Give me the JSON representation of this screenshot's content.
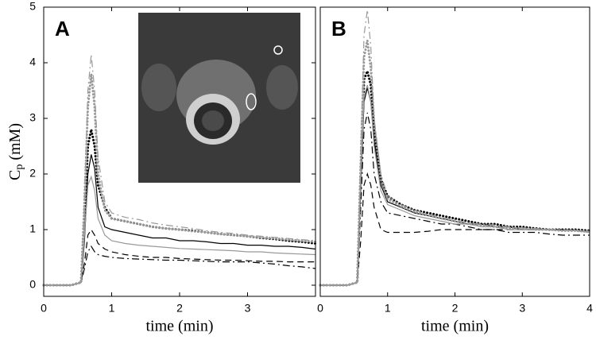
{
  "chart_data": [
    {
      "type": "line",
      "label": "A",
      "xlabel": "time (min)",
      "ylabel": "C",
      "ylabel_sub": "p",
      "ylabel_unit": "(mM)",
      "xlim": [
        0,
        4
      ],
      "xticks": [
        0,
        1,
        2,
        3
      ],
      "ylim": [
        -0.2,
        5
      ],
      "yticks": [
        0,
        1,
        2,
        3,
        4,
        5
      ],
      "x": [
        0,
        0.2,
        0.4,
        0.55,
        0.6,
        0.65,
        0.7,
        0.75,
        0.8,
        0.9,
        1.0,
        1.2,
        1.4,
        1.6,
        1.8,
        2.0,
        2.2,
        2.4,
        2.6,
        2.8,
        3.0,
        3.2,
        3.4,
        3.6,
        3.8,
        4.0
      ],
      "series": [
        {
          "color": "#000000",
          "style": "solid",
          "values": [
            0,
            0,
            0,
            0.05,
            0.8,
            2.0,
            2.35,
            2.1,
            1.4,
            1.05,
            1.0,
            0.95,
            0.9,
            0.85,
            0.85,
            0.8,
            0.8,
            0.78,
            0.75,
            0.75,
            0.72,
            0.72,
            0.7,
            0.7,
            0.68,
            0.65
          ]
        },
        {
          "color": "#000000",
          "style": "dashed",
          "values": [
            0,
            0,
            0,
            0.05,
            0.4,
            0.9,
            1.0,
            0.9,
            0.75,
            0.65,
            0.6,
            0.55,
            0.52,
            0.5,
            0.5,
            0.48,
            0.47,
            0.46,
            0.45,
            0.45,
            0.44,
            0.43,
            0.43,
            0.42,
            0.42,
            0.42
          ]
        },
        {
          "color": "#000000",
          "style": "dashdot",
          "values": [
            0,
            0,
            0,
            0.05,
            0.3,
            0.6,
            0.7,
            0.6,
            0.55,
            0.52,
            0.5,
            0.48,
            0.47,
            0.46,
            0.45,
            0.45,
            0.44,
            0.43,
            0.42,
            0.42,
            0.42,
            0.4,
            0.38,
            0.35,
            0.33,
            0.3
          ]
        },
        {
          "color": "#000000",
          "style": "dotted",
          "values": [
            0,
            0,
            0,
            0.05,
            1.2,
            2.5,
            2.8,
            2.5,
            1.8,
            1.4,
            1.2,
            1.15,
            1.1,
            1.05,
            1.02,
            1.0,
            0.98,
            0.95,
            0.92,
            0.9,
            0.88,
            0.85,
            0.83,
            0.8,
            0.78,
            0.75
          ]
        },
        {
          "color": "#999999",
          "style": "solid",
          "values": [
            0,
            0,
            0,
            0.05,
            0.9,
            1.8,
            1.95,
            1.7,
            1.2,
            0.9,
            0.8,
            0.75,
            0.72,
            0.7,
            0.68,
            0.66,
            0.65,
            0.64,
            0.63,
            0.62,
            0.6,
            0.6,
            0.58,
            0.57,
            0.56,
            0.55
          ]
        },
        {
          "color": "#999999",
          "style": "dashdot",
          "values": [
            0,
            0,
            0,
            0.05,
            1.6,
            3.5,
            4.15,
            3.5,
            2.3,
            1.5,
            1.3,
            1.22,
            1.18,
            1.12,
            1.08,
            1.05,
            1.02,
            0.98,
            0.95,
            0.93,
            0.9,
            0.88,
            0.86,
            0.84,
            0.82,
            0.8
          ]
        },
        {
          "color": "#999999",
          "style": "dotted",
          "values": [
            0,
            0,
            0,
            0.05,
            1.5,
            3.2,
            3.8,
            3.2,
            2.0,
            1.35,
            1.2,
            1.15,
            1.1,
            1.05,
            1.02,
            1.0,
            0.97,
            0.95,
            0.92,
            0.9,
            0.88,
            0.86,
            0.84,
            0.82,
            0.8,
            0.78
          ]
        }
      ]
    },
    {
      "type": "line",
      "label": "B",
      "xlabel": "time (min)",
      "xlim": [
        0,
        4
      ],
      "xticks": [
        0,
        1,
        2,
        3,
        4
      ],
      "ylim": [
        -0.2,
        5
      ],
      "x": [
        0,
        0.2,
        0.4,
        0.55,
        0.6,
        0.65,
        0.7,
        0.75,
        0.8,
        0.9,
        1.0,
        1.2,
        1.4,
        1.6,
        1.8,
        2.0,
        2.2,
        2.4,
        2.6,
        2.8,
        3.0,
        3.2,
        3.4,
        3.6,
        3.8,
        4.0
      ],
      "series": [
        {
          "color": "#000000",
          "style": "solid",
          "values": [
            0,
            0,
            0,
            0.05,
            1.8,
            3.3,
            3.55,
            3.3,
            2.6,
            1.8,
            1.5,
            1.4,
            1.3,
            1.25,
            1.2,
            1.15,
            1.1,
            1.1,
            1.05,
            1.05,
            1.0,
            1.0,
            1.0,
            1.0,
            0.98,
            0.95
          ]
        },
        {
          "color": "#000000",
          "style": "dashed",
          "values": [
            0,
            0,
            0,
            0.05,
            0.8,
            1.8,
            2.0,
            1.8,
            1.4,
            1.0,
            0.95,
            0.95,
            0.95,
            0.97,
            1.0,
            1.0,
            1.0,
            1.0,
            1.0,
            1.0,
            1.0,
            1.0,
            1.0,
            0.98,
            0.98,
            0.95
          ]
        },
        {
          "color": "#000000",
          "style": "dashdot",
          "values": [
            0,
            0,
            0,
            0.05,
            1.4,
            2.8,
            3.1,
            2.8,
            2.0,
            1.5,
            1.3,
            1.25,
            1.2,
            1.15,
            1.1,
            1.1,
            1.05,
            1.0,
            1.0,
            0.95,
            0.95,
            0.95,
            0.92,
            0.9,
            0.9,
            0.9
          ]
        },
        {
          "color": "#000000",
          "style": "dotted",
          "values": [
            0,
            0,
            0,
            0.05,
            2.0,
            3.7,
            3.85,
            3.6,
            2.8,
            1.9,
            1.6,
            1.45,
            1.35,
            1.3,
            1.25,
            1.2,
            1.15,
            1.1,
            1.1,
            1.05,
            1.05,
            1.02,
            1.0,
            1.0,
            1.0,
            0.98
          ]
        },
        {
          "color": "#999999",
          "style": "solid",
          "values": [
            0,
            0,
            0,
            0.05,
            1.9,
            3.4,
            3.6,
            3.3,
            2.5,
            1.7,
            1.45,
            1.35,
            1.25,
            1.2,
            1.15,
            1.1,
            1.1,
            1.05,
            1.05,
            1.0,
            1.0,
            1.0,
            1.0,
            0.98,
            0.98,
            0.95
          ]
        },
        {
          "color": "#999999",
          "style": "dashdot",
          "values": [
            0,
            0,
            0,
            0.05,
            2.4,
            4.5,
            4.95,
            4.3,
            3.0,
            2.0,
            1.6,
            1.45,
            1.35,
            1.28,
            1.22,
            1.18,
            1.12,
            1.1,
            1.08,
            1.05,
            1.03,
            1.02,
            1.0,
            1.0,
            0.98,
            0.97
          ]
        },
        {
          "color": "#999999",
          "style": "dotted",
          "values": [
            0,
            0,
            0,
            0.05,
            2.2,
            4.1,
            4.4,
            3.9,
            2.9,
            1.9,
            1.55,
            1.42,
            1.32,
            1.26,
            1.2,
            1.15,
            1.1,
            1.08,
            1.05,
            1.03,
            1.02,
            1.0,
            1.0,
            0.98,
            0.98,
            0.96
          ]
        }
      ]
    }
  ]
}
